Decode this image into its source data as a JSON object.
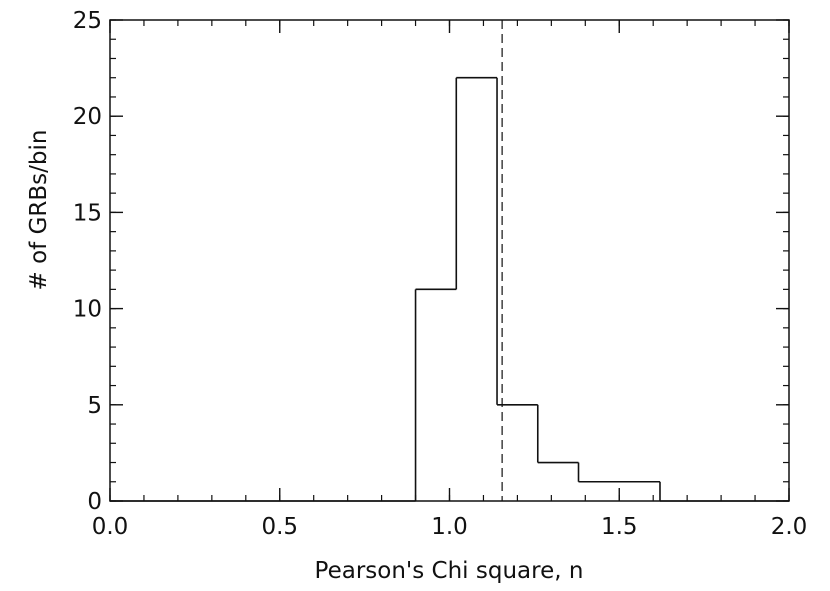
{
  "chart_data": {
    "type": "histogram",
    "title": "",
    "xlabel": "Pearson's Chi square, n",
    "ylabel": "# of GRBs/bin",
    "xlim": [
      0.0,
      2.0
    ],
    "ylim": [
      0,
      25
    ],
    "x_ticks": [
      "0.0",
      "0.5",
      "1.0",
      "1.5",
      "2.0"
    ],
    "y_ticks": [
      "0",
      "5",
      "10",
      "15",
      "20",
      "25"
    ],
    "x_minor_step": 0.1,
    "y_minor_step": 1,
    "grid": false,
    "legend": "none",
    "bins": [
      {
        "x0": 0.0,
        "x1": 0.9,
        "count": 0
      },
      {
        "x0": 0.9,
        "x1": 1.02,
        "count": 11
      },
      {
        "x0": 1.02,
        "x1": 1.14,
        "count": 22
      },
      {
        "x0": 1.14,
        "x1": 1.26,
        "count": 5
      },
      {
        "x0": 1.26,
        "x1": 1.38,
        "count": 2
      },
      {
        "x0": 1.38,
        "x1": 1.62,
        "count": 1
      },
      {
        "x0": 1.62,
        "x1": 2.0,
        "count": 0
      }
    ],
    "reference_line": {
      "x": 1.155,
      "style": "dashed"
    },
    "colors": {
      "line": "#111111",
      "background": "#ffffff"
    }
  }
}
